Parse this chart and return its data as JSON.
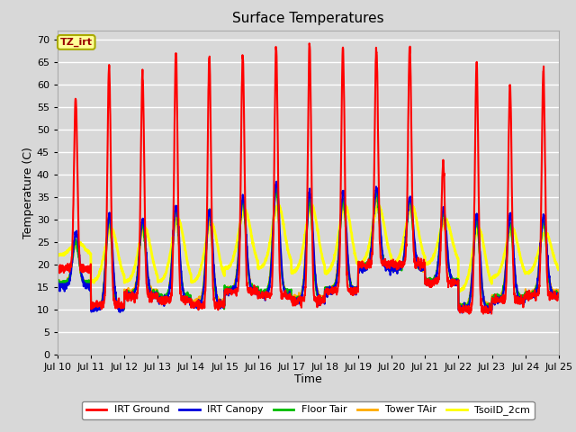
{
  "title": "Surface Temperatures",
  "xlabel": "Time",
  "ylabel": "Temperature (C)",
  "ylim": [
    0,
    72
  ],
  "yticks": [
    0,
    5,
    10,
    15,
    20,
    25,
    30,
    35,
    40,
    45,
    50,
    55,
    60,
    65,
    70
  ],
  "background_color": "#d8d8d8",
  "plot_bg_color": "#d8d8d8",
  "grid_color": "#ffffff",
  "annotation_text": "TZ_irt",
  "annotation_bg": "#ffff99",
  "annotation_border": "#aaaa00",
  "legend_labels": [
    "IRT Ground",
    "IRT Canopy",
    "Floor Tair",
    "Tower TAir",
    "TsoilD_2cm"
  ],
  "legend_colors": [
    "#ff0000",
    "#0000dd",
    "#00bb00",
    "#ffaa00",
    "#ffff00"
  ],
  "line_widths": [
    1.5,
    1.5,
    1.5,
    1.5,
    2.0
  ],
  "start_day": 10,
  "end_day": 25,
  "points_per_day": 144,
  "irt_ground_peaks": [
    57,
    64,
    63,
    67,
    66,
    66,
    68,
    69,
    68,
    68,
    68,
    43,
    65,
    60,
    63
  ],
  "irt_ground_mins": [
    19,
    11,
    13,
    12,
    11,
    14,
    13,
    12,
    14,
    20,
    20,
    16,
    10,
    12,
    13
  ],
  "canopy_peaks": [
    27,
    31,
    30,
    33,
    32,
    35,
    38,
    36,
    36,
    37,
    35,
    32,
    31,
    31,
    31
  ],
  "canopy_mins": [
    15,
    10,
    13,
    12,
    11,
    14,
    13,
    12,
    14,
    19,
    19,
    16,
    10,
    12,
    13
  ],
  "tsoil_peaks": [
    25,
    28,
    28,
    30,
    29,
    32,
    33,
    33,
    33,
    33,
    33,
    30,
    28,
    28,
    27
  ],
  "tsoil_mins": [
    22,
    16,
    16,
    16,
    16,
    19,
    19,
    18,
    18,
    20,
    20,
    20,
    14,
    17,
    18
  ]
}
